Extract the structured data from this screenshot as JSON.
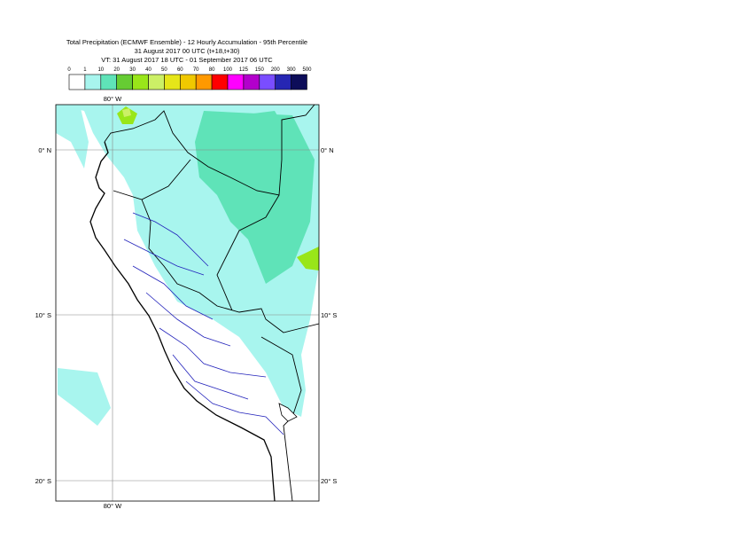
{
  "title": {
    "lines": [
      "Total Precipitation (ECMWF Ensemble) - 12 Hourly Accumulation - 95th Percentile",
      "31 August 2017 00 UTC (t+18,t+30)",
      "VT: 31 August 2017 18 UTC - 01 September 2017 06 UTC"
    ]
  },
  "legend": {
    "labels": [
      "0",
      "1",
      "10",
      "20",
      "30",
      "40",
      "50",
      "60",
      "70",
      "80",
      "100",
      "125",
      "150",
      "200",
      "300",
      "500"
    ],
    "colors": [
      "#ffffff",
      "#a8f5ee",
      "#5fe3b8",
      "#66cc33",
      "#99e619",
      "#ccf066",
      "#e6e619",
      "#f0c800",
      "#ff9900",
      "#ff0000",
      "#ff00ff",
      "#b300cc",
      "#7a4dff",
      "#2626b3",
      "#0d0d59"
    ]
  },
  "map": {
    "longitude_labels": [
      "80° W"
    ],
    "latitude_labels": [
      "0° N",
      "10° S",
      "20° S"
    ]
  }
}
